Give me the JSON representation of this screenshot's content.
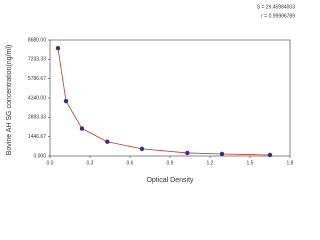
{
  "chart_data": {
    "type": "line",
    "xlabel": "Optical Density",
    "ylabel": "Bovine AH SG concentration(ng/ml)",
    "annotations": [
      "S = 29.45984003",
      "r = 0.99996789"
    ],
    "x": [
      0.06,
      0.12,
      0.24,
      0.43,
      0.69,
      1.03,
      1.29,
      1.65
    ],
    "series": [
      {
        "color": "#c0392b",
        "marker_color": "#2e2e8f",
        "values": [
          8070,
          4110,
          2056,
          1066,
          533,
          228,
          152,
          76
        ]
      }
    ],
    "xlim": [
      0,
      1.8
    ],
    "xticks": [
      {
        "value": 0,
        "label": "0.0"
      },
      0.3,
      0.6,
      0.9,
      1.2,
      1.5,
      1.8
    ],
    "ylim": [
      0,
      8680
    ],
    "yticks": [
      {
        "value": 0,
        "label": "0.000"
      },
      1446.67,
      2893.33,
      {
        "value": 4340,
        "label": "4340.00"
      },
      5786.67,
      7233.33,
      {
        "value": 8680,
        "label": "8680.00"
      }
    ]
  }
}
